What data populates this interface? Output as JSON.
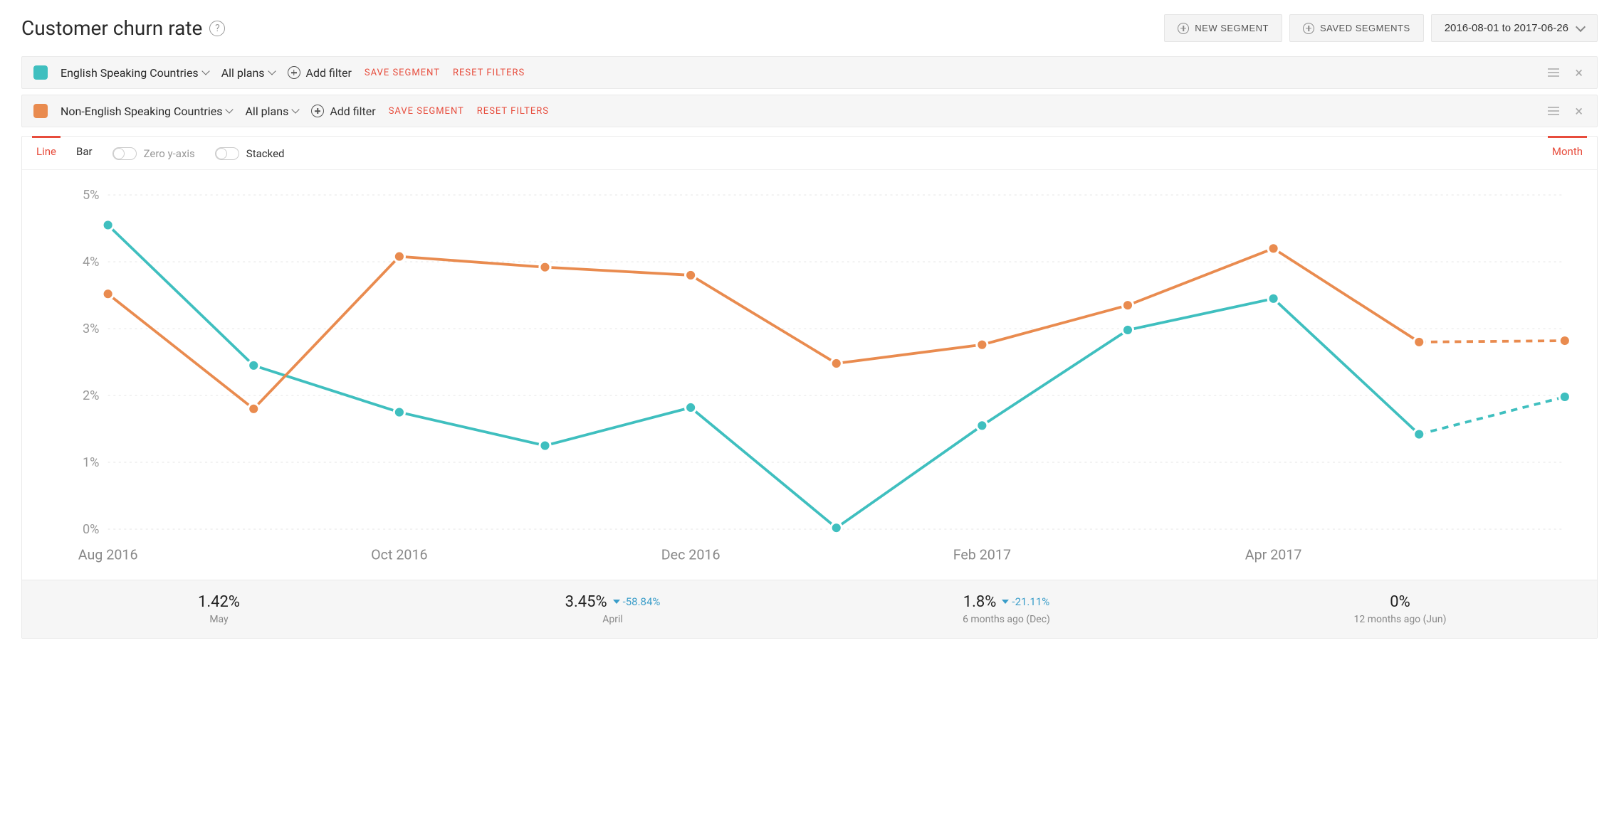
{
  "colors": {
    "accent_red": "#e74c3c",
    "teal": "#3fbfbf",
    "orange": "#e98b4f",
    "grid": "#eeeeee",
    "axis_text": "#999999",
    "card_border": "#eaeaea",
    "background": "#ffffff",
    "panel_bg": "#f6f6f6"
  },
  "header": {
    "title": "Customer churn rate",
    "new_segment": "NEW SEGMENT",
    "saved_segments": "SAVED SEGMENTS",
    "date_range": "2016-08-01 to 2017-06-26"
  },
  "segments": [
    {
      "name": "English Speaking Countries",
      "color": "#3fbfbf",
      "plans_label": "All plans",
      "add_filter": "Add filter",
      "save": "SAVE SEGMENT",
      "reset": "RESET FILTERS"
    },
    {
      "name": "Non-English Speaking Countries",
      "color": "#e98b4f",
      "plans_label": "All plans",
      "add_filter": "Add filter",
      "save": "SAVE SEGMENT",
      "reset": "RESET FILTERS"
    }
  ],
  "toolbar": {
    "tab_line": "Line",
    "tab_bar": "Bar",
    "toggle_zero": "Zero y-axis",
    "toggle_stacked": "Stacked",
    "period": "Month"
  },
  "chart": {
    "type": "line",
    "y_axis": {
      "min": 0,
      "max": 5,
      "step": 1,
      "unit": "%",
      "ticks": [
        0,
        1,
        2,
        3,
        4,
        5
      ]
    },
    "x_axis": {
      "labels_shown": [
        "Aug 2016",
        "Oct 2016",
        "Dec 2016",
        "Feb 2017",
        "Apr 2017"
      ],
      "label_month_indices": [
        0,
        2,
        4,
        6,
        8
      ],
      "months": [
        "Aug 2016",
        "Sep 2016",
        "Oct 2016",
        "Nov 2016",
        "Dec 2016",
        "Jan 2017",
        "Feb 2017",
        "Mar 2017",
        "Apr 2017",
        "May 2017",
        "Jun 2017"
      ]
    },
    "series": [
      {
        "name": "English Speaking Countries",
        "color": "#3fbfbf",
        "values": [
          4.55,
          2.45,
          1.75,
          1.25,
          1.82,
          0.02,
          1.55,
          2.98,
          3.45,
          1.42,
          1.98
        ],
        "dashed_from_index": 9
      },
      {
        "name": "Non-English Speaking Countries",
        "color": "#e98b4f",
        "values": [
          3.52,
          1.8,
          4.08,
          3.92,
          3.8,
          2.48,
          2.76,
          3.35,
          4.2,
          2.8,
          2.82
        ],
        "dashed_from_index": 9
      }
    ],
    "line_width": 2.5,
    "marker_radius": 5,
    "grid_dash": "2 3",
    "background_color": "#ffffff"
  },
  "summary": [
    {
      "value": "1.42%",
      "delta": "",
      "sub": "May"
    },
    {
      "value": "3.45%",
      "delta": "-58.84%",
      "sub": "April"
    },
    {
      "value": "1.8%",
      "delta": "-21.11%",
      "sub": "6 months ago (Dec)"
    },
    {
      "value": "0%",
      "delta": "",
      "sub": "12 months ago (Jun)"
    }
  ]
}
